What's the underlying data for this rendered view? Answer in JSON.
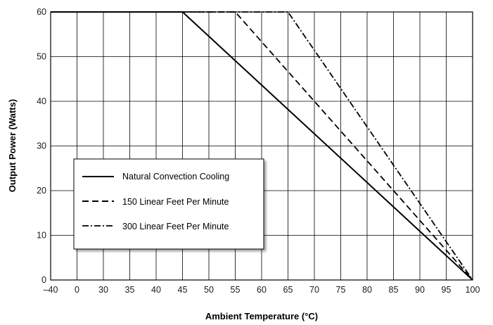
{
  "chart_data": {
    "type": "line",
    "title": "",
    "xlabel": "Ambient Temperature (°C)",
    "ylabel": "Output Power (Watts)",
    "x_ticks": [
      "–40",
      "0",
      "30",
      "35",
      "40",
      "45",
      "50",
      "55",
      "60",
      "65",
      "70",
      "75",
      "80",
      "85",
      "90",
      "95",
      "100"
    ],
    "y_ticks": [
      "0",
      "10",
      "20",
      "30",
      "40",
      "50",
      "60"
    ],
    "ylim": [
      0,
      60
    ],
    "grid": true,
    "legend_position": "lower-left",
    "series": [
      {
        "name": "Natural Convection Cooling",
        "style": "solid",
        "x": [
          -40,
          45,
          100
        ],
        "y": [
          60,
          60,
          0
        ]
      },
      {
        "name": "150 Linear Feet Per Minute",
        "style": "dashed",
        "x": [
          -40,
          55,
          100
        ],
        "y": [
          60,
          60,
          0
        ]
      },
      {
        "name": "300 Linear Feet Per Minute",
        "style": "dashdot",
        "x": [
          -40,
          65,
          100
        ],
        "y": [
          60,
          60,
          0
        ]
      }
    ],
    "colors": {
      "line": "#000000",
      "grid": "#000000",
      "background": "#ffffff"
    }
  }
}
